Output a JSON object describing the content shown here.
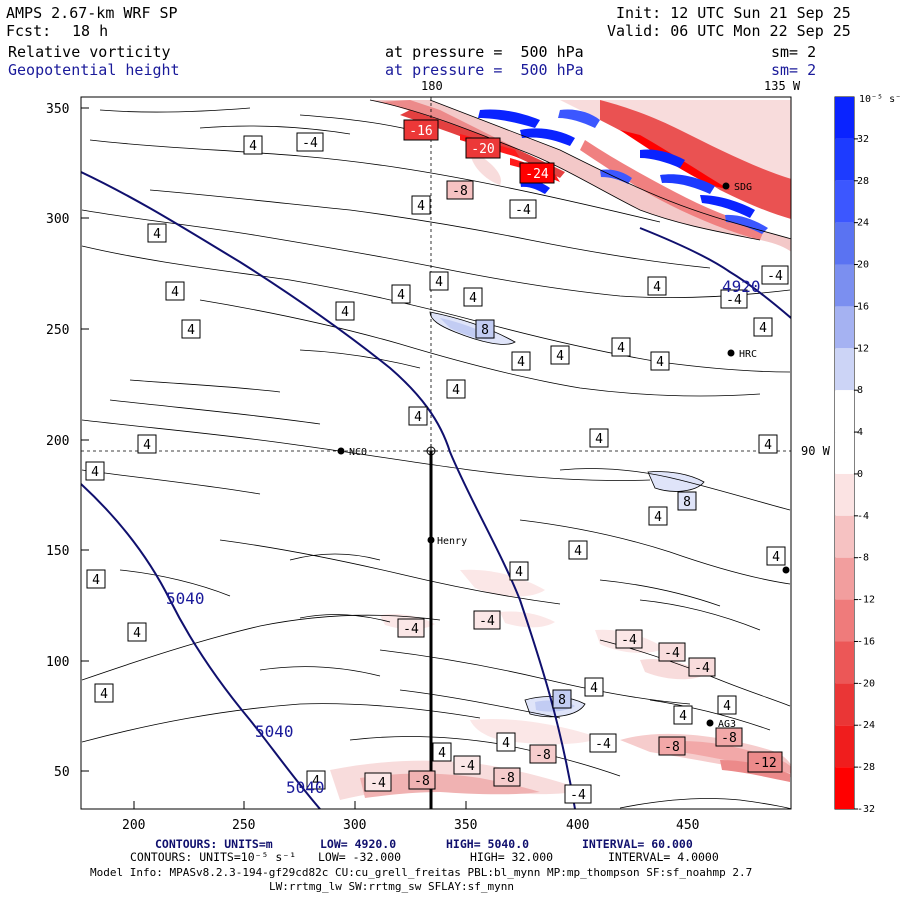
{
  "header": {
    "model": "AMPS 2.67-km WRF SP",
    "fcst_label": "Fcst:",
    "fcst_value": "18 h",
    "init": "Init: 12 UTC Sun 21 Sep 25",
    "valid": "Valid: 06 UTC Mon 22 Sep 25",
    "field1": "Relative vorticity",
    "field2": "Geopotential height",
    "level1": "at pressure =  500 hPa",
    "level2": "at pressure =  500 hPa",
    "sm1": "sm= 2",
    "sm2": "sm= 2"
  },
  "map": {
    "lon_label_top": "180",
    "lon_label_topright": "135 W",
    "lon_label_right": "90 W",
    "stations": [
      {
        "name": "NCO",
        "lon": 294,
        "lat": 196
      },
      {
        "name": "Henry",
        "lon": 334,
        "lat": 155
      },
      {
        "name": "HRC",
        "lon": 469,
        "lat": 239
      },
      {
        "name": "AG3",
        "lon": 460,
        "lat": 72
      },
      {
        "name": "SDG",
        "lon": 467,
        "lat": 315
      },
      {
        "name": "",
        "lon": 494,
        "lat": 142
      }
    ],
    "height_contour_labels": [
      "4920",
      "5040",
      "5040",
      "5040"
    ]
  },
  "chart_data": {
    "type": "contour-map",
    "x_range": [
      175,
      495
    ],
    "y_range": [
      35,
      355
    ],
    "x_ticks": [
      200,
      250,
      300,
      350,
      400,
      450
    ],
    "y_ticks": [
      50,
      100,
      150,
      200,
      250,
      300,
      350
    ],
    "shading_variable": "Relative vorticity (10^-5 s^-1)",
    "contour_variable": "Geopotential height (m)",
    "colorbar": {
      "unit_label": "10⁻⁵ s⁻¹",
      "ticks": [
        "32",
        "28",
        "24",
        "20",
        "16",
        "12",
        "8",
        "4",
        "0",
        "-4",
        "-8",
        "-12",
        "-16",
        "-20",
        "-24",
        "-28",
        "-32"
      ],
      "colors": [
        "#0a23ff",
        "#1d3bff",
        "#3c57ff",
        "#5a73f2",
        "#7b8ff0",
        "#a5b2f2",
        "#ccd4f6",
        "#ffffff",
        "#ffffff",
        "#fbe3e3",
        "#f6c2c2",
        "#f29e9e",
        "#ef7b7b",
        "#ec5757",
        "#ea3636",
        "#f01d1d",
        "#ff0000"
      ]
    },
    "vorticity_labels": [
      "4",
      "-4",
      "8",
      "-8",
      "-12",
      "-16",
      "-20",
      "-24"
    ]
  },
  "footer": {
    "line1_left": "CONTOURS: UNITS=m",
    "line1_low": "LOW= 4920.0",
    "line1_high": "HIGH= 5040.0",
    "line1_interval": "INTERVAL= 60.000",
    "line2_left": "CONTOURS: UNITS=10⁻⁵ s⁻¹",
    "line2_low": "LOW= -32.000",
    "line2_high": "HIGH= 32.000",
    "line2_interval": "INTERVAL= 4.0000",
    "model_info": "Model Info: MPASv8.2.3-194-gf29cd82c CU:cu_grell_freitas PBL:bl_mynn MP:mp_thompson SF:sf_noahmp 2.7",
    "model_info2": "LW:rrtmg_lw SW:rrtmg_sw SFLAY:sf_mynn"
  }
}
